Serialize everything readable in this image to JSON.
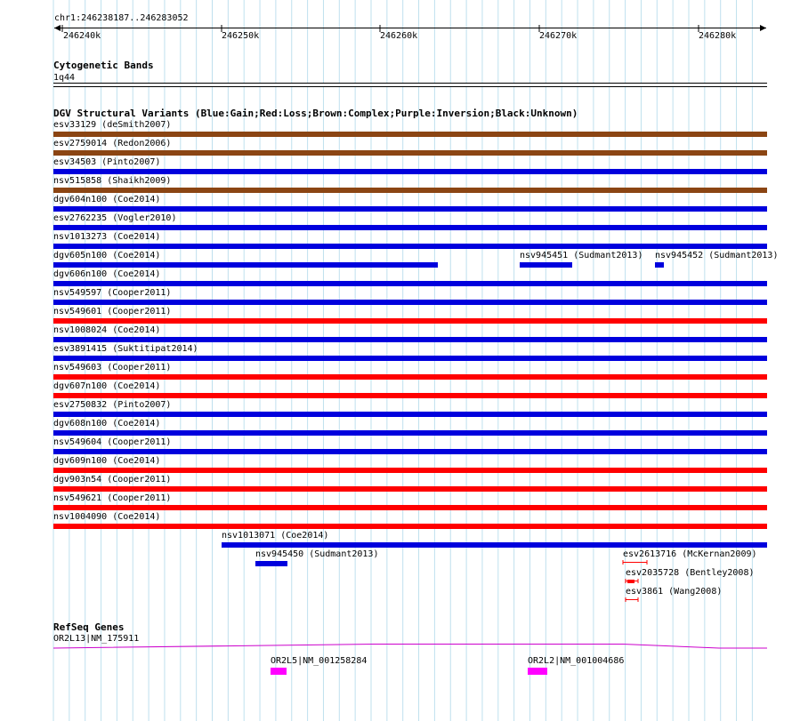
{
  "ruler": {
    "location": "chr1:246238187..246283052",
    "ticks": [
      "246240k",
      "246250k",
      "246260k",
      "246270k",
      "246280k"
    ]
  },
  "cytoband": {
    "title": "Cytogenetic Bands",
    "band": "1q44"
  },
  "dgv": {
    "title": "DGV Structural Variants (Blue:Gain;Red:Loss;Brown:Complex;Purple:Inversion;Black:Unknown)",
    "legend_colors": {
      "gain": "#0000dd",
      "loss": "#ff0000",
      "complex": "#8b4513"
    },
    "features": [
      {
        "label": "esv33129 (deSmith2007)",
        "type": "complex"
      },
      {
        "label": "esv2759014 (Redon2006)",
        "type": "complex"
      },
      {
        "label": "esv34503 (Pinto2007)",
        "type": "gain"
      },
      {
        "label": "nsv515858 (Shaikh2009)",
        "type": "complex"
      },
      {
        "label": "dgv604n100 (Coe2014)",
        "type": "gain"
      },
      {
        "label": "esv2762235 (Vogler2010)",
        "type": "gain"
      },
      {
        "label": "nsv1013273 (Coe2014)",
        "type": "gain"
      },
      {
        "label": "dgv605n100 (Coe2014)",
        "type": "gain"
      },
      {
        "label": "nsv945451 (Sudmant2013)",
        "type": "gain"
      },
      {
        "label": "nsv945452 (Sudmant2013)",
        "type": "gain"
      },
      {
        "label": "dgv606n100 (Coe2014)",
        "type": "gain"
      },
      {
        "label": "nsv549597 (Cooper2011)",
        "type": "gain"
      },
      {
        "label": "nsv549601 (Cooper2011)",
        "type": "loss"
      },
      {
        "label": "nsv1008024 (Coe2014)",
        "type": "gain"
      },
      {
        "label": "esv3891415 (Suktitipat2014)",
        "type": "gain"
      },
      {
        "label": "nsv549603 (Cooper2011)",
        "type": "loss"
      },
      {
        "label": "dgv607n100 (Coe2014)",
        "type": "loss"
      },
      {
        "label": "esv2750832 (Pinto2007)",
        "type": "gain"
      },
      {
        "label": "dgv608n100 (Coe2014)",
        "type": "gain"
      },
      {
        "label": "nsv549604 (Cooper2011)",
        "type": "gain"
      },
      {
        "label": "dgv609n100 (Coe2014)",
        "type": "loss"
      },
      {
        "label": "dgv903n54 (Cooper2011)",
        "type": "loss"
      },
      {
        "label": "nsv549621 (Cooper2011)",
        "type": "loss"
      },
      {
        "label": "nsv1004090 (Coe2014)",
        "type": "loss"
      },
      {
        "label": "nsv1013071 (Coe2014)",
        "type": "gain"
      },
      {
        "label": "nsv945450 (Sudmant2013)",
        "type": "gain"
      },
      {
        "label": "esv2613716 (McKernan2009)",
        "type": "loss"
      },
      {
        "label": "esv2035728 (Bentley2008)",
        "type": "loss"
      },
      {
        "label": "esv3861 (Wang2008)",
        "type": "loss"
      }
    ]
  },
  "refseq": {
    "title": "RefSeq Genes",
    "genes": [
      {
        "label": "OR2L13|NM_175911"
      },
      {
        "label": "OR2L5|NM_001258284"
      },
      {
        "label": "OR2L2|NM_001004686"
      }
    ],
    "colors": {
      "intron": "#cc00cc",
      "exon": "#ff00ff"
    }
  }
}
